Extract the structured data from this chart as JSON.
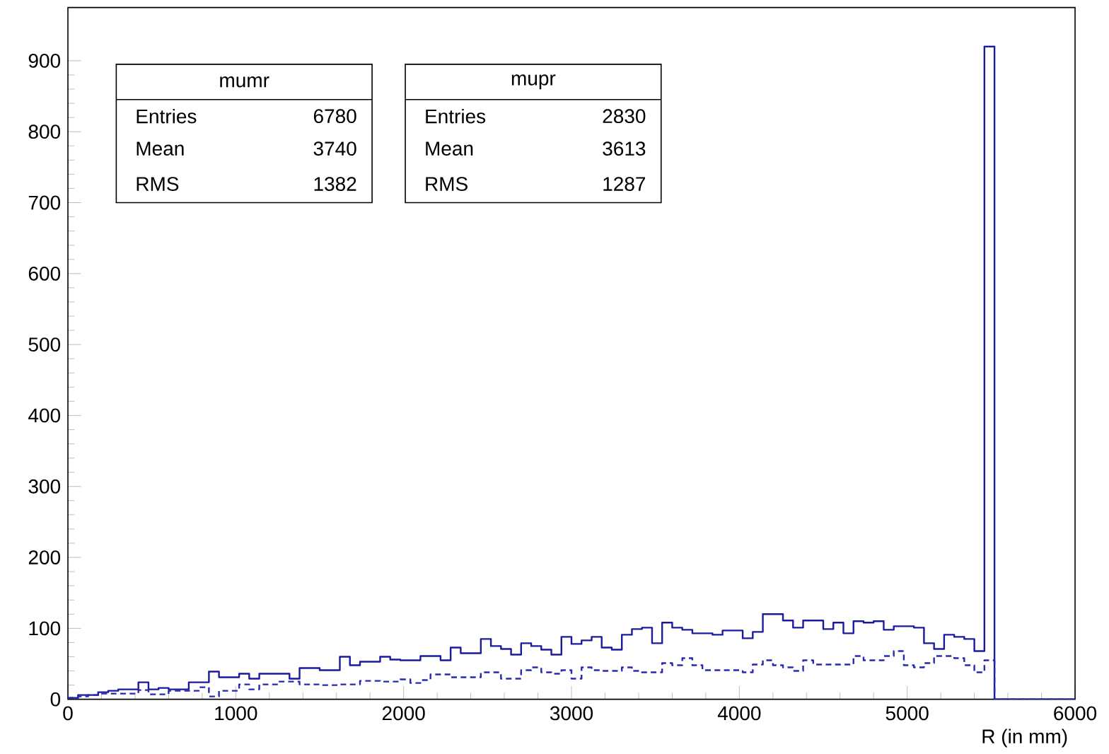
{
  "chart_data": {
    "type": "histogram",
    "xlabel": "R (in mm)",
    "bins": [
      0,
      60,
      120,
      180,
      240,
      300,
      360,
      420,
      480,
      540,
      600,
      660,
      720,
      780,
      840,
      900,
      960,
      1020,
      1080,
      1140,
      1200,
      1260,
      1320,
      1380,
      1440,
      1500,
      1560,
      1620,
      1680,
      1740,
      1800,
      1860,
      1920,
      1980,
      2040,
      2100,
      2160,
      2220,
      2280,
      2340,
      2400,
      2460,
      2520,
      2580,
      2640,
      2700,
      2760,
      2820,
      2880,
      2940,
      3000,
      3060,
      3120,
      3180,
      3240,
      3300,
      3360,
      3420,
      3480,
      3540,
      3600,
      3660,
      3720,
      3780,
      3840,
      3900,
      3960,
      4020,
      4080,
      4140,
      4200,
      4260,
      4320,
      4380,
      4440,
      4500,
      4560,
      4620,
      4680,
      4740,
      4800,
      4860,
      4920,
      4980,
      5040,
      5100,
      5160,
      5220,
      5280,
      5340,
      5400,
      5460,
      5520,
      5580,
      5640,
      5700,
      5760,
      5820,
      5880,
      5940,
      6000
    ],
    "series": [
      {
        "color": "#1a1aa0",
        "line_style": "solid",
        "values": [
          2,
          6,
          6,
          10,
          12,
          14,
          14,
          24,
          14,
          16,
          14,
          14,
          24,
          24,
          39,
          31,
          31,
          36,
          29,
          36,
          36,
          36,
          29,
          44,
          44,
          41,
          41,
          60,
          48,
          53,
          53,
          60,
          56,
          55,
          55,
          61,
          61,
          55,
          73,
          65,
          65,
          85,
          75,
          71,
          63,
          79,
          75,
          70,
          63,
          88,
          78,
          83,
          88,
          73,
          70,
          91,
          99,
          101,
          79,
          108,
          101,
          98,
          93,
          93,
          91,
          97,
          97,
          86,
          95,
          120,
          120,
          111,
          101,
          111,
          111,
          99,
          108,
          93,
          110,
          108,
          110,
          98,
          103,
          103,
          101,
          79,
          71,
          91,
          88,
          85,
          68,
          920,
          0,
          0,
          0,
          0,
          0,
          0,
          0,
          0
        ]
      },
      {
        "color": "#2828b4",
        "line_style": "dashed",
        "values": [
          2,
          4,
          6,
          8,
          8,
          8,
          8,
          13,
          7,
          7,
          12,
          12,
          12,
          17,
          4,
          12,
          12,
          21,
          14,
          21,
          21,
          25,
          25,
          21,
          21,
          20,
          20,
          21,
          21,
          26,
          26,
          25,
          25,
          28,
          23,
          27,
          35,
          35,
          31,
          31,
          31,
          38,
          38,
          29,
          29,
          41,
          45,
          38,
          36,
          41,
          29,
          45,
          41,
          40,
          40,
          45,
          40,
          38,
          38,
          51,
          48,
          58,
          48,
          41,
          41,
          41,
          41,
          38,
          49,
          55,
          48,
          45,
          40,
          55,
          49,
          49,
          49,
          49,
          61,
          55,
          55,
          61,
          68,
          48,
          45,
          51,
          61,
          61,
          58,
          48,
          38,
          55,
          0,
          0,
          0,
          0,
          0,
          0,
          0,
          0
        ]
      }
    ],
    "xlim": [
      0,
      6000
    ],
    "xticks": [
      0,
      1000,
      2000,
      3000,
      4000,
      5000,
      6000
    ],
    "ylim": [
      0,
      975
    ],
    "yticks": [
      0,
      100,
      200,
      300,
      400,
      500,
      600,
      700,
      800,
      900
    ],
    "annotations": [
      "mumr",
      "Entries",
      "6780",
      "Mean",
      "3740",
      "RMS",
      "1382",
      "mupr",
      "Entries",
      "2830",
      "Mean",
      "3613",
      "RMS",
      "1287"
    ],
    "grid": false,
    "marker": "none"
  }
}
